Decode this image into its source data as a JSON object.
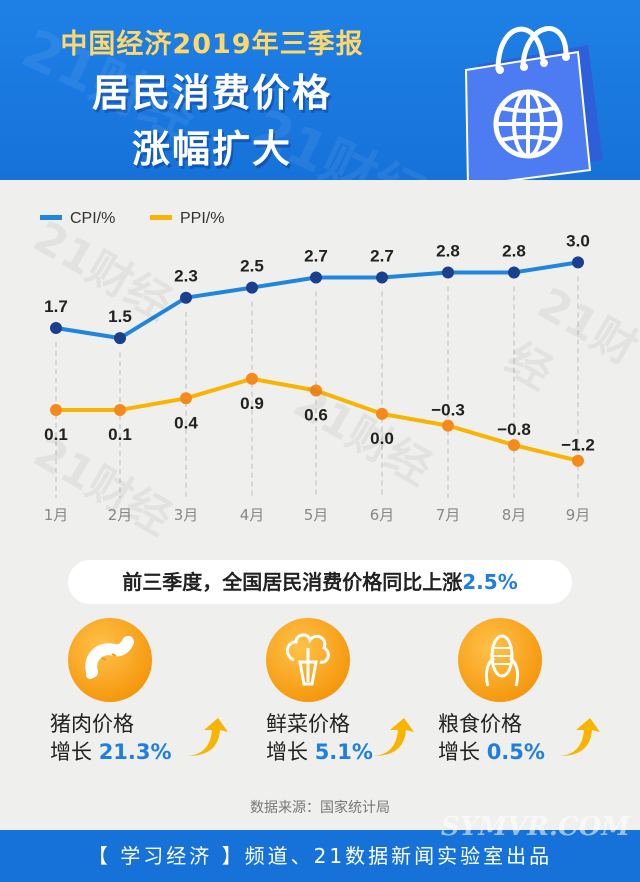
{
  "header": {
    "subtitle": "中国经济2019年三季报",
    "title_line1": "居民消费价格",
    "title_line2": "涨幅扩大"
  },
  "chart_data": {
    "type": "line",
    "categories": [
      "1月",
      "2月",
      "3月",
      "4月",
      "5月",
      "6月",
      "7月",
      "8月",
      "9月"
    ],
    "series": [
      {
        "name": "CPI/%",
        "color": "#1f86db",
        "values": [
          1.7,
          1.5,
          2.3,
          2.5,
          2.7,
          2.7,
          2.8,
          2.8,
          3.0
        ],
        "labels": [
          "1.7",
          "1.5",
          "2.3",
          "2.5",
          "2.7",
          "2.7",
          "2.8",
          "2.8",
          "3.0"
        ]
      },
      {
        "name": "PPI/%",
        "color": "#f8b400",
        "values": [
          0.1,
          0.1,
          0.4,
          0.9,
          0.6,
          0.0,
          -0.3,
          -0.8,
          -1.2
        ],
        "labels": [
          "0.1",
          "0.1",
          "0.4",
          "0.9",
          "0.6",
          "0.0",
          "−0.3",
          "−0.8",
          "−1.2"
        ]
      }
    ],
    "legend_position": "top-left",
    "grid": false
  },
  "summary": {
    "text": "前三季度，全国居民消费价格同比上涨",
    "value": "2.5%"
  },
  "stats": [
    {
      "icon": "sausage-icon",
      "line1": "猪肉价格",
      "prefix": "增长 ",
      "value": "21.3%"
    },
    {
      "icon": "vegetable-icon",
      "line1": "鲜菜价格",
      "prefix": "增长 ",
      "value": "5.1%"
    },
    {
      "icon": "corn-icon",
      "line1": "粮食价格",
      "prefix": "增长 ",
      "value": "0.5%"
    }
  ],
  "source": "数据来源：国家统计局",
  "footer": "【 学习经济 】频道、21数据新闻实验室出品",
  "watermark": "21财经",
  "site_watermark": "SYMVR.COM",
  "colors": {
    "blue": "#1672d9",
    "orange": "#f59a10",
    "highlight": "#1f7fe0"
  }
}
